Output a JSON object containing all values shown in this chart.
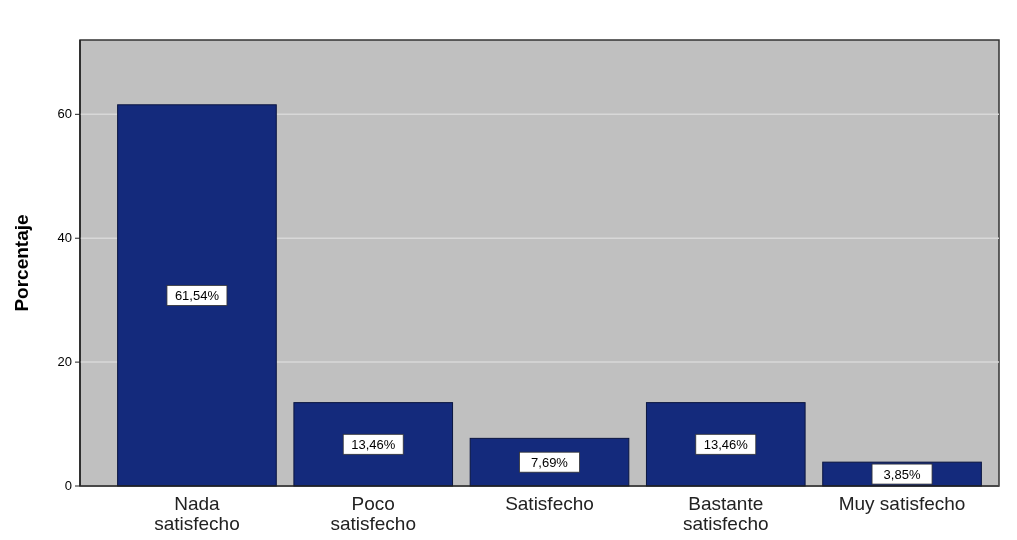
{
  "chart_data": {
    "type": "bar",
    "ylabel": "Porcentaje",
    "categories": [
      "Nada satisfecho",
      "Poco satisfecho",
      "Satisfecho",
      "Bastante satisfecho",
      "Muy satisfecho"
    ],
    "values": [
      61.54,
      13.46,
      7.69,
      13.46,
      3.85
    ],
    "value_labels": [
      "61,54%",
      "13,46%",
      "7,69%",
      "13,46%",
      "3,85%"
    ],
    "color": "#142a7c",
    "ylim": [
      0,
      72
    ],
    "yticks": [
      0,
      20,
      40,
      60
    ],
    "grid": "y"
  }
}
